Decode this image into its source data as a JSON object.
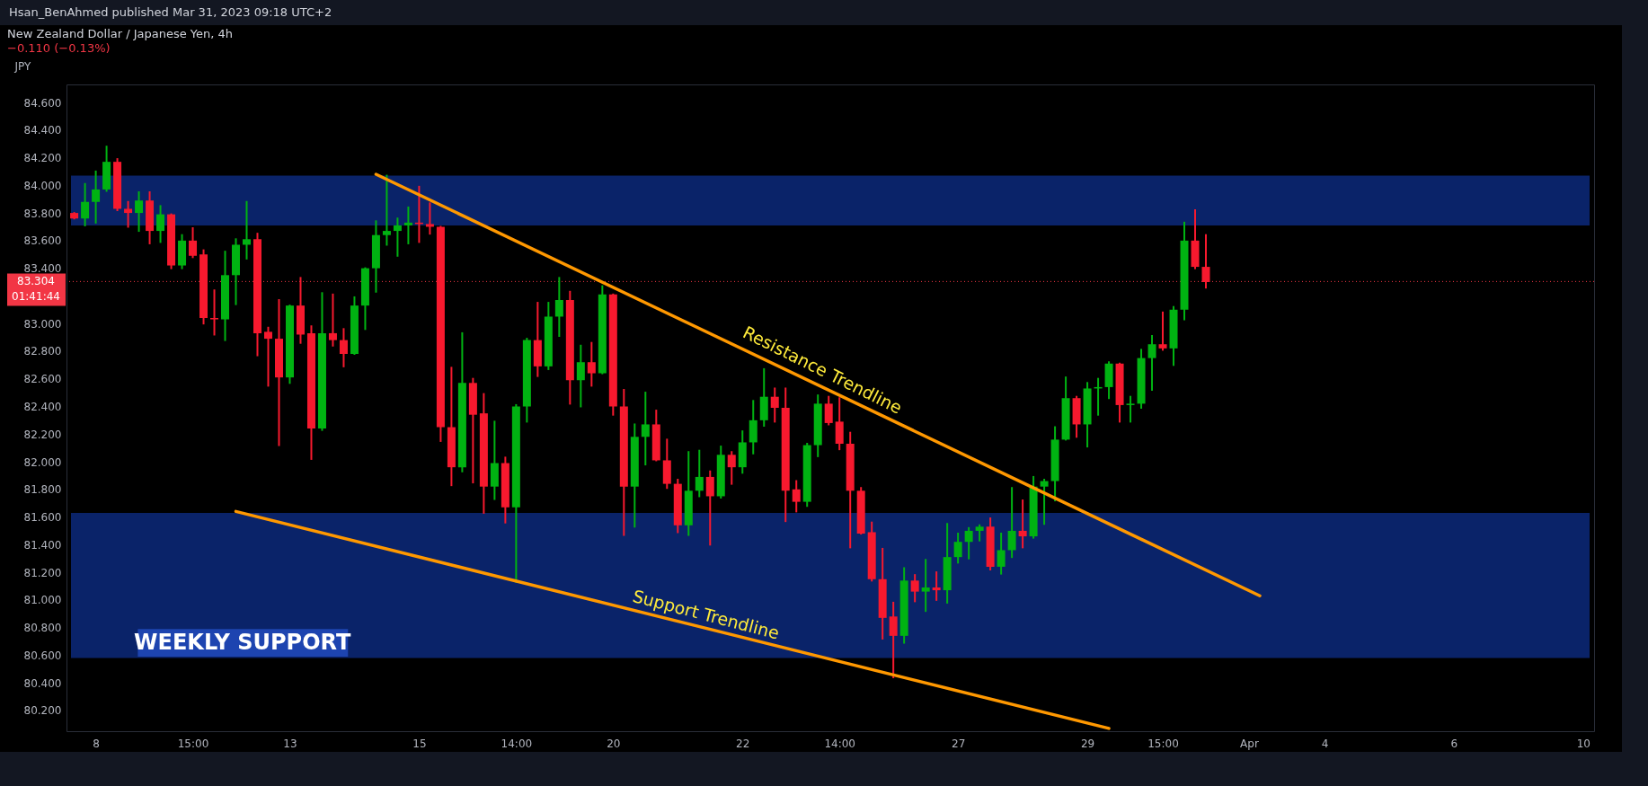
{
  "chart_data": {
    "type": "candlestick",
    "title": "New Zealand Dollar / Japanese Yen, 4h",
    "subtitle": "−0.110 (−0.13%)",
    "ylabel": "JPY",
    "categories": [
      null,
      null,
      "8",
      null,
      null,
      null,
      null,
      null,
      null,
      null,
      null,
      "15:00",
      null,
      null,
      null,
      null,
      null,
      null,
      null,
      null,
      "13",
      null,
      null,
      null,
      null,
      null,
      null,
      null,
      null,
      null,
      null,
      null,
      "15",
      null,
      null,
      null,
      null,
      null,
      null,
      null,
      null,
      "14:00",
      null,
      null,
      null,
      null,
      null,
      null,
      null,
      null,
      "20",
      null,
      null,
      null,
      null,
      null,
      null,
      null,
      null,
      null,
      null,
      null,
      "22",
      null,
      null,
      null,
      null,
      null,
      null,
      null,
      null,
      "14:00",
      null,
      null,
      null,
      null,
      null,
      null,
      null,
      null,
      null,
      null,
      "27",
      null,
      null,
      null,
      null,
      null,
      null,
      null,
      null,
      null,
      null,
      null,
      "29",
      null,
      null,
      null,
      null,
      null,
      null,
      "15:00",
      null,
      null,
      null,
      null,
      null,
      null,
      null,
      "Apr",
      null,
      null,
      null,
      null,
      null,
      null,
      "4",
      null,
      null,
      null,
      null,
      null,
      null,
      null,
      null,
      null,
      null,
      null,
      "6",
      null,
      null,
      null,
      null,
      null,
      null,
      null,
      null,
      null,
      null,
      null,
      "10"
    ],
    "ohlc": [
      [
        83.8,
        83.8,
        83.76,
        83.76
      ],
      [
        83.76,
        84.01,
        83.71,
        83.88
      ],
      [
        83.88,
        84.1,
        83.73,
        83.97
      ],
      [
        83.97,
        84.28,
        83.96,
        84.17
      ],
      [
        84.17,
        84.19,
        83.82,
        83.83
      ],
      [
        83.83,
        83.88,
        83.7,
        83.8
      ],
      [
        83.8,
        83.95,
        83.67,
        83.89
      ],
      [
        83.89,
        83.95,
        83.58,
        83.67
      ],
      [
        83.67,
        83.85,
        83.59,
        83.79
      ],
      [
        83.79,
        83.79,
        83.4,
        83.42
      ],
      [
        83.42,
        83.64,
        83.4,
        83.6
      ],
      [
        83.6,
        83.69,
        83.48,
        83.49
      ],
      [
        83.5,
        83.53,
        83.0,
        83.04
      ],
      [
        83.04,
        83.24,
        82.92,
        83.03
      ],
      [
        83.03,
        83.52,
        82.88,
        83.35
      ],
      [
        83.35,
        83.61,
        83.14,
        83.57
      ],
      [
        83.57,
        83.88,
        83.47,
        83.61
      ],
      [
        83.61,
        83.65,
        82.77,
        82.93
      ],
      [
        82.94,
        82.97,
        82.55,
        82.89
      ],
      [
        82.89,
        83.17,
        82.12,
        82.61
      ],
      [
        82.61,
        83.13,
        82.57,
        83.13
      ],
      [
        83.13,
        83.33,
        82.86,
        82.92
      ],
      [
        82.93,
        82.98,
        82.02,
        82.24
      ],
      [
        82.24,
        83.22,
        82.23,
        82.93
      ],
      [
        82.93,
        83.21,
        82.84,
        82.88
      ],
      [
        82.88,
        82.96,
        82.69,
        82.78
      ],
      [
        82.78,
        83.19,
        82.78,
        83.13
      ],
      [
        83.13,
        83.4,
        82.96,
        83.4
      ],
      [
        83.4,
        83.74,
        83.23,
        83.64
      ],
      [
        83.64,
        84.07,
        83.57,
        83.67
      ],
      [
        83.67,
        83.76,
        83.49,
        83.71
      ],
      [
        83.71,
        83.84,
        83.58,
        83.73
      ],
      [
        83.73,
        83.99,
        83.59,
        83.72
      ],
      [
        83.72,
        83.87,
        83.65,
        83.7
      ],
      [
        83.7,
        83.7,
        82.15,
        82.25
      ],
      [
        82.25,
        82.68,
        81.83,
        81.96
      ],
      [
        81.96,
        82.93,
        81.93,
        82.57
      ],
      [
        82.57,
        82.6,
        81.85,
        82.34
      ],
      [
        82.35,
        82.49,
        81.63,
        81.82
      ],
      [
        81.82,
        82.29,
        81.73,
        81.99
      ],
      [
        81.99,
        82.03,
        81.56,
        81.67
      ],
      [
        81.67,
        82.41,
        81.13,
        82.4
      ],
      [
        82.4,
        82.89,
        82.29,
        82.88
      ],
      [
        82.88,
        83.15,
        82.62,
        82.69
      ],
      [
        82.69,
        83.15,
        82.67,
        83.05
      ],
      [
        83.05,
        83.33,
        82.91,
        83.17
      ],
      [
        83.17,
        83.23,
        82.42,
        82.59
      ],
      [
        82.59,
        82.84,
        82.4,
        82.72
      ],
      [
        82.72,
        82.86,
        82.55,
        82.64
      ],
      [
        82.64,
        83.27,
        82.64,
        83.21
      ],
      [
        83.21,
        83.21,
        82.34,
        82.4
      ],
      [
        82.4,
        82.52,
        81.47,
        81.82
      ],
      [
        81.82,
        82.27,
        81.53,
        82.18
      ],
      [
        82.18,
        82.5,
        81.98,
        82.27
      ],
      [
        82.27,
        82.37,
        82.01,
        82.01
      ],
      [
        82.01,
        82.16,
        81.81,
        81.84
      ],
      [
        81.84,
        81.87,
        81.49,
        81.54
      ],
      [
        81.54,
        82.07,
        81.47,
        81.79
      ],
      [
        81.79,
        82.08,
        81.75,
        81.89
      ],
      [
        81.89,
        81.93,
        81.4,
        81.75
      ],
      [
        81.75,
        82.11,
        81.74,
        82.05
      ],
      [
        82.05,
        82.07,
        81.84,
        81.96
      ],
      [
        81.96,
        82.22,
        81.92,
        82.14
      ],
      [
        82.14,
        82.44,
        82.06,
        82.3
      ],
      [
        82.3,
        82.67,
        82.26,
        82.47
      ],
      [
        82.47,
        82.53,
        82.29,
        82.39
      ],
      [
        82.39,
        82.53,
        81.57,
        81.79
      ],
      [
        81.8,
        81.86,
        81.64,
        81.71
      ],
      [
        81.71,
        82.13,
        81.68,
        82.12
      ],
      [
        82.12,
        82.48,
        82.04,
        82.42
      ],
      [
        82.42,
        82.47,
        82.27,
        82.28
      ],
      [
        82.29,
        82.46,
        82.09,
        82.13
      ],
      [
        82.13,
        82.21,
        81.38,
        81.79
      ],
      [
        81.79,
        81.81,
        81.48,
        81.48
      ],
      [
        81.49,
        81.56,
        81.14,
        81.15
      ],
      [
        81.15,
        81.37,
        80.72,
        80.87
      ],
      [
        80.88,
        80.98,
        80.44,
        80.74
      ],
      [
        80.74,
        81.23,
        80.69,
        81.14
      ],
      [
        81.14,
        81.18,
        80.99,
        81.06
      ],
      [
        81.06,
        81.29,
        80.92,
        81.09
      ],
      [
        81.09,
        81.2,
        81.0,
        81.07
      ],
      [
        81.07,
        81.55,
        80.98,
        81.31
      ],
      [
        81.31,
        81.48,
        81.27,
        81.42
      ],
      [
        81.42,
        81.52,
        81.3,
        81.5
      ],
      [
        81.5,
        81.54,
        81.43,
        81.53
      ],
      [
        81.53,
        81.59,
        81.22,
        81.24
      ],
      [
        81.24,
        81.48,
        81.19,
        81.36
      ],
      [
        81.36,
        81.81,
        81.31,
        81.5
      ],
      [
        81.5,
        81.72,
        81.38,
        81.46
      ],
      [
        81.46,
        81.89,
        81.45,
        81.82
      ],
      [
        81.82,
        81.87,
        81.55,
        81.86
      ],
      [
        81.86,
        82.25,
        81.72,
        82.16
      ],
      [
        82.16,
        82.61,
        82.16,
        82.46
      ],
      [
        82.46,
        82.47,
        82.18,
        82.27
      ],
      [
        82.27,
        82.57,
        82.11,
        82.53
      ],
      [
        82.53,
        82.6,
        82.34,
        82.54
      ],
      [
        82.54,
        82.72,
        82.46,
        82.71
      ],
      [
        82.71,
        82.71,
        82.29,
        82.41
      ],
      [
        82.41,
        82.47,
        82.29,
        82.42
      ],
      [
        82.42,
        82.81,
        82.39,
        82.75
      ],
      [
        82.75,
        82.91,
        82.52,
        82.85
      ],
      [
        82.85,
        83.08,
        82.81,
        82.82
      ],
      [
        82.82,
        83.12,
        82.7,
        83.1
      ],
      [
        83.1,
        83.73,
        83.03,
        83.6
      ],
      [
        83.6,
        83.82,
        83.4,
        83.41
      ],
      [
        83.41,
        83.64,
        83.26,
        83.3
      ],
      null,
      null,
      null,
      null,
      null,
      null,
      null,
      null,
      null,
      null,
      null,
      null,
      null,
      null,
      null,
      null,
      null,
      null,
      null,
      null,
      null,
      null,
      null,
      null,
      null,
      null,
      null,
      null,
      null,
      null,
      null,
      null,
      null,
      null,
      null
    ],
    "series": [
      {
        "type": "line",
        "color": "#ff9800",
        "values": [
          null,
          null,
          null,
          null,
          null,
          null,
          null,
          null,
          null,
          null,
          null,
          null,
          null,
          null,
          null,
          null,
          null,
          null,
          null,
          null,
          null,
          null,
          null,
          null,
          null,
          null,
          null,
          null,
          84.08,
          null,
          null,
          null,
          null,
          null,
          null,
          null,
          null,
          null,
          null,
          null,
          null,
          null,
          null,
          null,
          null,
          null,
          null,
          null,
          null,
          null,
          null,
          null,
          null,
          null,
          null,
          null,
          null,
          null,
          null,
          null,
          null,
          null,
          null,
          null,
          null,
          null,
          null,
          null,
          null,
          null,
          null,
          null,
          null,
          null,
          null,
          null,
          null,
          null,
          null,
          null,
          null,
          null,
          null,
          null,
          null,
          null,
          null,
          null,
          null,
          null,
          null,
          null,
          null,
          null,
          null,
          null,
          null,
          null,
          null,
          null,
          null,
          null,
          null,
          null,
          null,
          null,
          null,
          null,
          null,
          null,
          81.03,
          null,
          null,
          null,
          null,
          null,
          null,
          null,
          null,
          null,
          null,
          null,
          null,
          null,
          null,
          null,
          null,
          null,
          null,
          null,
          null,
          null,
          null,
          null,
          null,
          null,
          null,
          null,
          null,
          null,
          null
        ]
      },
      {
        "type": "line",
        "color": "#ff9800",
        "values": [
          null,
          null,
          null,
          null,
          null,
          null,
          null,
          null,
          null,
          null,
          null,
          null,
          null,
          null,
          null,
          81.64,
          null,
          null,
          null,
          null,
          null,
          null,
          null,
          null,
          null,
          null,
          null,
          null,
          null,
          null,
          null,
          null,
          null,
          null,
          null,
          null,
          null,
          null,
          null,
          null,
          null,
          null,
          null,
          null,
          null,
          null,
          null,
          null,
          null,
          null,
          null,
          null,
          null,
          null,
          null,
          null,
          null,
          null,
          null,
          null,
          null,
          null,
          null,
          null,
          null,
          null,
          null,
          null,
          null,
          null,
          null,
          null,
          null,
          null,
          null,
          null,
          null,
          null,
          null,
          null,
          null,
          null,
          null,
          null,
          null,
          null,
          null,
          null,
          null,
          null,
          null,
          null,
          null,
          null,
          null,
          null,
          80.07,
          null,
          null,
          null,
          null,
          null,
          null,
          null,
          null,
          null,
          null,
          null,
          null,
          null,
          null,
          null,
          null,
          null,
          null,
          null,
          null,
          null,
          null,
          null,
          null,
          null,
          null,
          null,
          null,
          null,
          null,
          null,
          null,
          null,
          null,
          null,
          null,
          null,
          null,
          null,
          null,
          null,
          null,
          null,
          null
        ]
      }
    ],
    "ylim": [
      80.05,
      84.73
    ],
    "yticks": [
      {
        "value": 80.2,
        "label": "80.200"
      },
      {
        "value": 80.4,
        "label": "80.400"
      },
      {
        "value": 80.6,
        "label": "80.600"
      },
      {
        "value": 80.8,
        "label": "80.800"
      },
      {
        "value": 81.0,
        "label": "81.000"
      },
      {
        "value": 81.2,
        "label": "81.200"
      },
      {
        "value": 81.4,
        "label": "81.400"
      },
      {
        "value": 81.6,
        "label": "81.600"
      },
      {
        "value": 81.8,
        "label": "81.800"
      },
      {
        "value": 82.0,
        "label": "82.000"
      },
      {
        "value": 82.2,
        "label": "82.200"
      },
      {
        "value": 82.4,
        "label": "82.400"
      },
      {
        "value": 82.6,
        "label": "82.600"
      },
      {
        "value": 82.8,
        "label": "82.800"
      },
      {
        "value": 83.0,
        "label": "83.000"
      },
      {
        "value": 83.4,
        "label": "83.400"
      },
      {
        "value": 83.6,
        "label": "83.600"
      },
      {
        "value": 83.8,
        "label": "83.800"
      },
      {
        "value": 84.0,
        "label": "84.000"
      },
      {
        "value": 84.2,
        "label": "84.200"
      },
      {
        "value": 84.4,
        "label": "84.400"
      },
      {
        "value": 84.6,
        "label": "84.600"
      }
    ],
    "bands": [
      {
        "axis": "y",
        "from": 83.71,
        "to": 84.07,
        "color": "#0a2369"
      },
      {
        "axis": "y",
        "from": 80.58,
        "to": 81.63,
        "color": "#0a2369",
        "label": "WEEKLY SUPPORT"
      }
    ],
    "ref_lines": [
      {
        "axis": "y",
        "value": 83.304,
        "label": "83.304",
        "color": "#f23645",
        "line_style": "dotted"
      }
    ],
    "annotations": [
      "Hsan_BenAhmed published Mar 31, 2023 09:18 UTC+2",
      "01:41:44",
      "Resistance Trendline",
      "Support Trendline"
    ]
  }
}
